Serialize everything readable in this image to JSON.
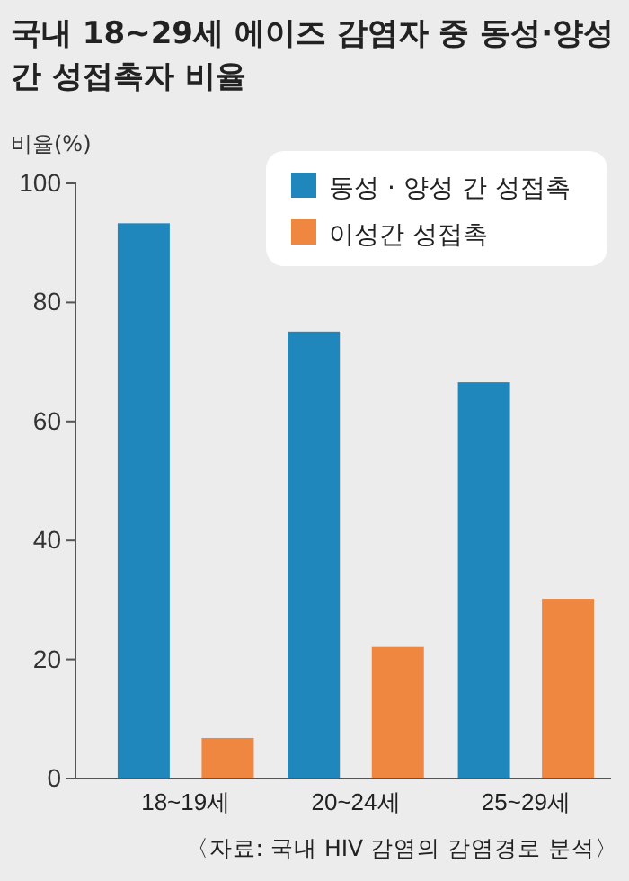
{
  "chart_data": {
    "type": "bar",
    "title": "국내 18~29세 에이즈 감염자 중 동성·양성 간 성접촉자 비율",
    "ylabel": "비율(%)",
    "categories": [
      "18~19세",
      "20~24세",
      "25~29세"
    ],
    "series": [
      {
        "name": "동성 · 양성 간 성접촉",
        "color": "#1f87bb",
        "values": [
          93.3,
          75.1,
          66.6
        ]
      },
      {
        "name": "이성간 성접촉",
        "color": "#ef8740",
        "values": [
          6.8,
          22.1,
          30.2
        ]
      }
    ],
    "ylim": [
      0,
      100
    ],
    "yticks": [
      0,
      20,
      40,
      60,
      80,
      100
    ],
    "grid": false,
    "legend": "top right",
    "annotations": [
      "〈자료: 국내 HIV 감염의 감염경로 분석〉"
    ]
  }
}
